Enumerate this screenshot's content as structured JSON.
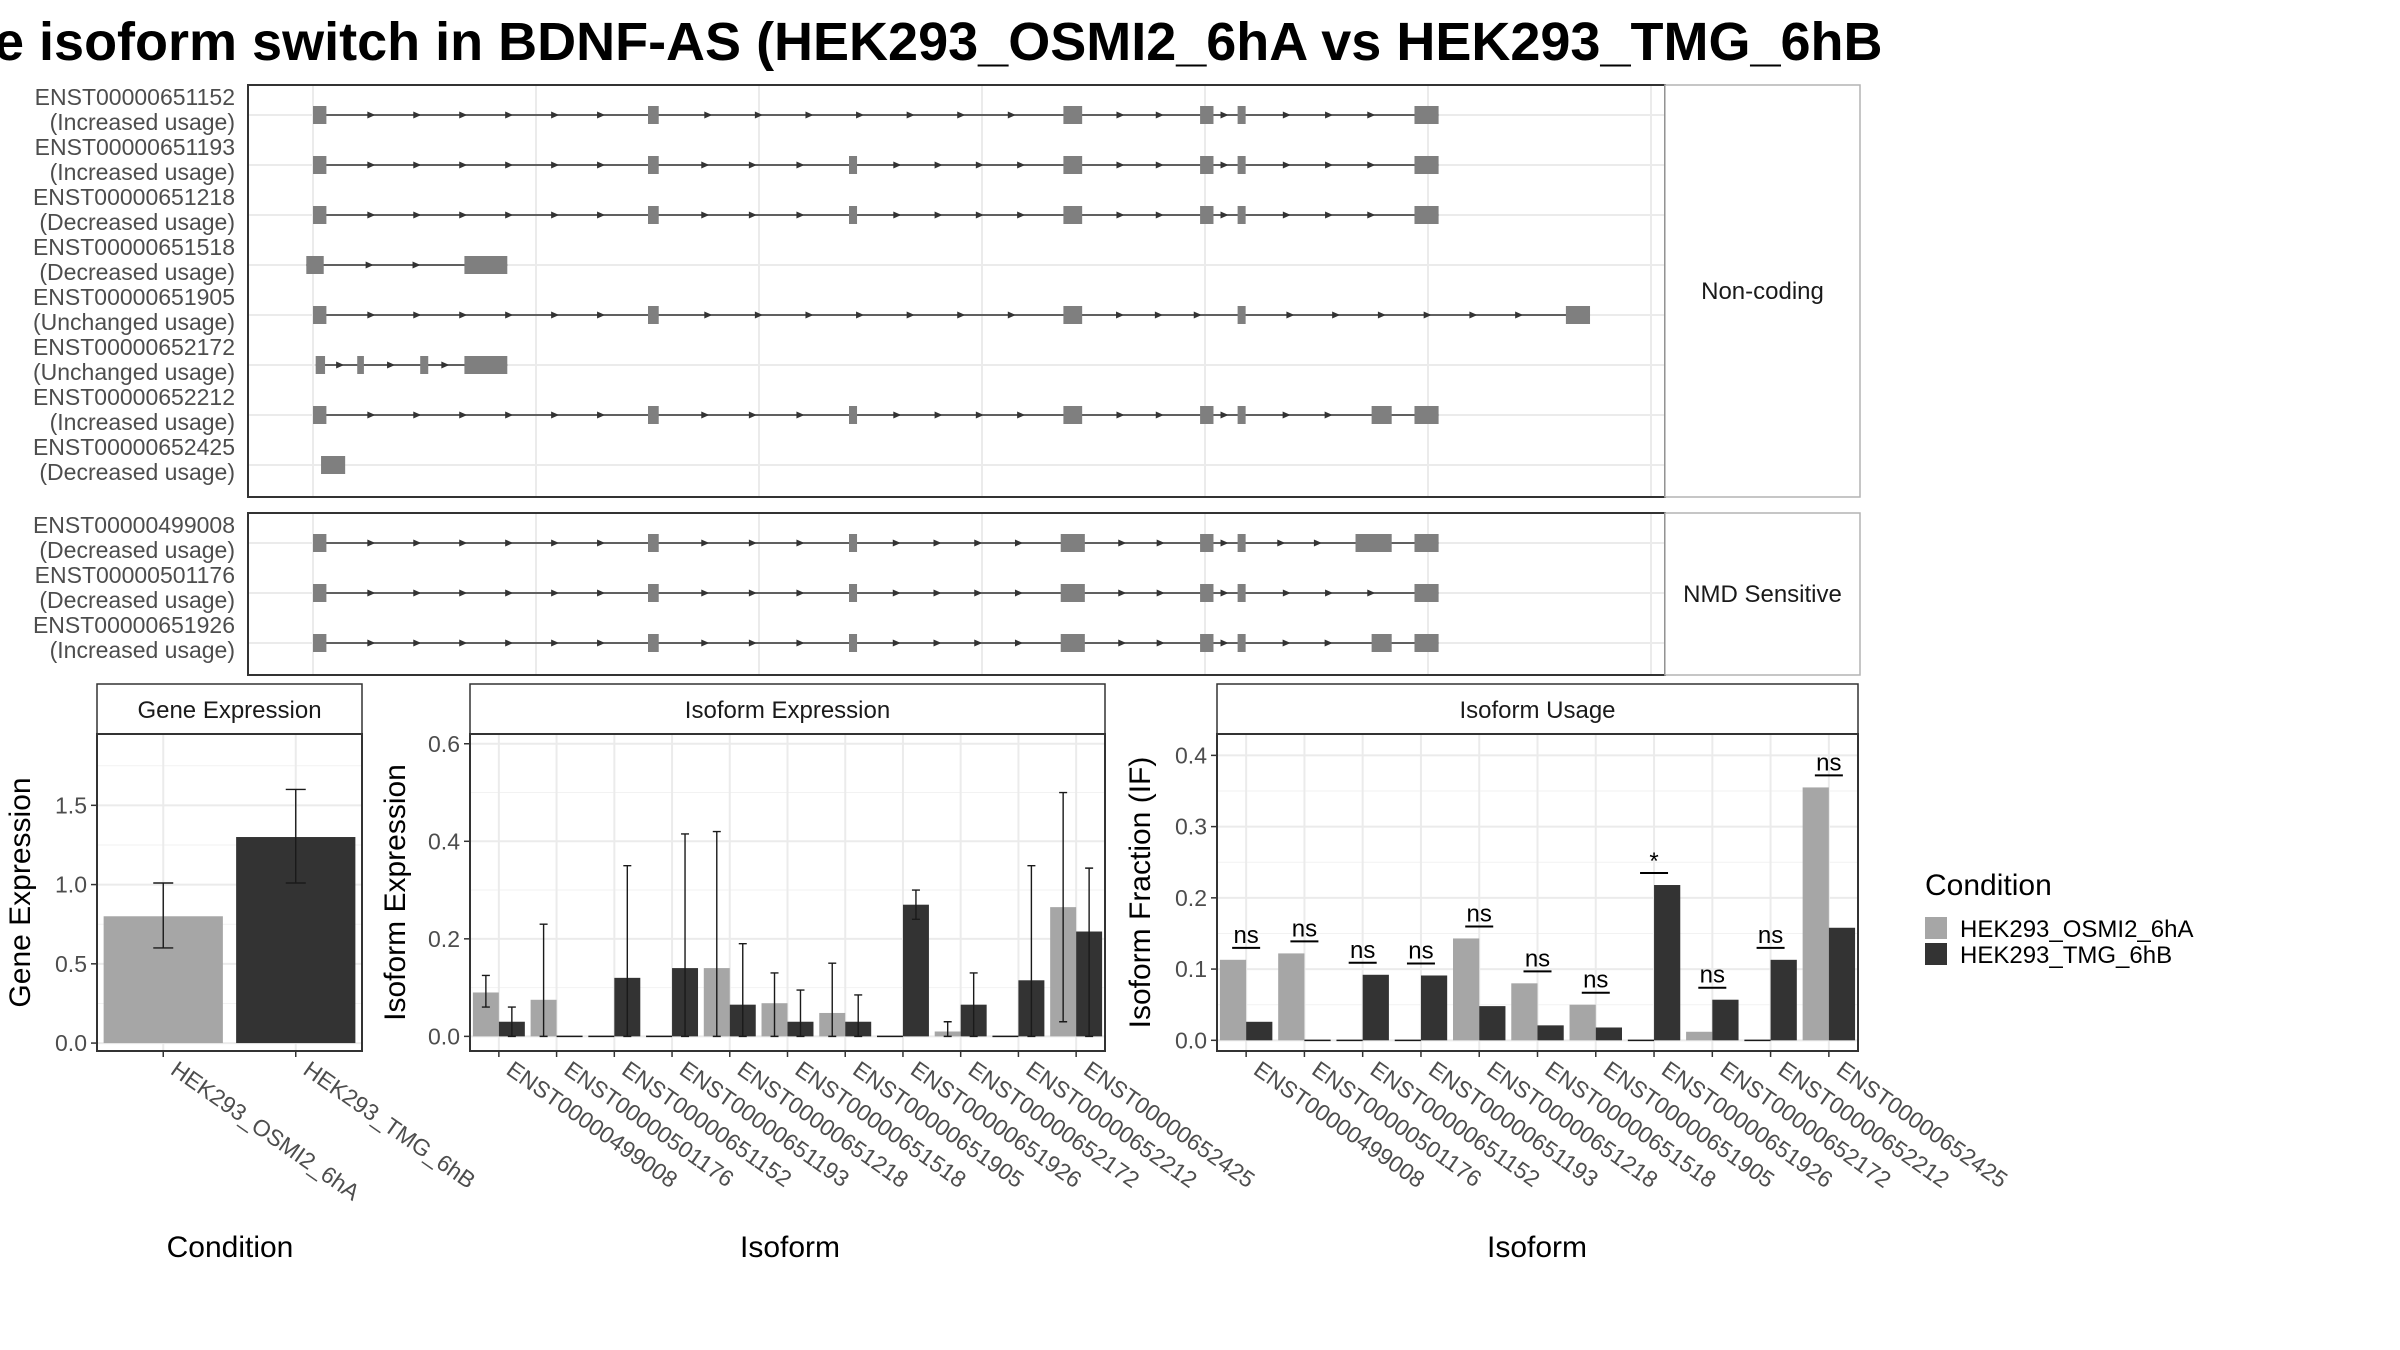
{
  "title": "e isoform switch in BDNF-AS (HEK293_OSMI2_6hA vs HEK293_TMG_6hB",
  "colors": {
    "cond1": "#a6a6a6",
    "cond2": "#333333",
    "exon": "#7f7f7f"
  },
  "transcript_facets": [
    {
      "label": "Non-coding",
      "transcripts": [
        {
          "id": "ENST00000651152",
          "change": "(Increased usage)",
          "exons": [
            [
              0,
              10
            ],
            [
              250,
              258
            ],
            [
              560,
              574
            ],
            [
              662,
              672
            ],
            [
              690,
              696
            ],
            [
              822,
              840
            ]
          ]
        },
        {
          "id": "ENST00000651193",
          "change": "(Increased usage)",
          "exons": [
            [
              0,
              10
            ],
            [
              250,
              258
            ],
            [
              400,
              406
            ],
            [
              560,
              574
            ],
            [
              662,
              672
            ],
            [
              690,
              696
            ],
            [
              822,
              840
            ]
          ]
        },
        {
          "id": "ENST00000651218",
          "change": "(Decreased usage)",
          "exons": [
            [
              0,
              10
            ],
            [
              250,
              258
            ],
            [
              400,
              406
            ],
            [
              560,
              574
            ],
            [
              662,
              672
            ],
            [
              690,
              696
            ],
            [
              822,
              840
            ]
          ]
        },
        {
          "id": "ENST00000651518",
          "change": "(Decreased usage)",
          "exons": [
            [
              -5,
              8
            ],
            [
              113,
              145
            ]
          ]
        },
        {
          "id": "ENST00000651905",
          "change": "(Unchanged usage)",
          "exons": [
            [
              0,
              10
            ],
            [
              250,
              258
            ],
            [
              560,
              574
            ],
            [
              690,
              696
            ],
            [
              935,
              953
            ]
          ]
        },
        {
          "id": "ENST00000652172",
          "change": "(Unchanged usage)",
          "exons": [
            [
              2,
              9
            ],
            [
              33,
              38
            ],
            [
              80,
              86
            ],
            [
              113,
              145
            ]
          ]
        },
        {
          "id": "ENST00000652212",
          "change": "(Increased usage)",
          "exons": [
            [
              0,
              10
            ],
            [
              250,
              258
            ],
            [
              400,
              406
            ],
            [
              560,
              574
            ],
            [
              662,
              672
            ],
            [
              690,
              696
            ],
            [
              790,
              805
            ],
            [
              822,
              840
            ]
          ]
        },
        {
          "id": "ENST00000652425",
          "change": "(Decreased usage)",
          "exons": [
            [
              6,
              24
            ]
          ]
        }
      ]
    },
    {
      "label": "NMD Sensitive",
      "transcripts": [
        {
          "id": "ENST00000499008",
          "change": "(Decreased usage)",
          "exons": [
            [
              0,
              10
            ],
            [
              250,
              258
            ],
            [
              400,
              406
            ],
            [
              558,
              576
            ],
            [
              662,
              672
            ],
            [
              690,
              696
            ],
            [
              778,
              805
            ],
            [
              822,
              840
            ]
          ]
        },
        {
          "id": "ENST00000501176",
          "change": "(Decreased usage)",
          "exons": [
            [
              0,
              10
            ],
            [
              250,
              258
            ],
            [
              400,
              406
            ],
            [
              558,
              576
            ],
            [
              662,
              672
            ],
            [
              690,
              696
            ],
            [
              822,
              840
            ]
          ]
        },
        {
          "id": "ENST00000651926",
          "change": "(Increased usage)",
          "exons": [
            [
              0,
              10
            ],
            [
              250,
              258
            ],
            [
              400,
              406
            ],
            [
              558,
              576
            ],
            [
              662,
              672
            ],
            [
              690,
              696
            ],
            [
              790,
              805
            ],
            [
              822,
              840
            ]
          ]
        }
      ]
    }
  ],
  "chart_data": [
    {
      "type": "bar",
      "panel": "Gene Expression",
      "categories": [
        "HEK293_OSMI2_6hA",
        "HEK293_TMG_6hB"
      ],
      "values": [
        0.8,
        1.3
      ],
      "error_low": [
        0.6,
        1.01
      ],
      "error_high": [
        1.01,
        1.6
      ],
      "xlabel": "Condition",
      "ylabel": "Gene Expression",
      "ylim": [
        -0.05,
        1.95
      ],
      "yticks": [
        "0.0",
        "0.5",
        "1.0",
        "1.5"
      ]
    },
    {
      "type": "bar",
      "panel": "Isoform Expression",
      "categories": [
        "ENST00000499008",
        "ENST00000501176",
        "ENST00000651152",
        "ENST00000651193",
        "ENST00000651218",
        "ENST00000651518",
        "ENST00000651905",
        "ENST00000651926",
        "ENST00000652172",
        "ENST00000652212",
        "ENST00000652425"
      ],
      "series": [
        {
          "name": "HEK293_OSMI2_6hA",
          "values": [
            0.09,
            0.075,
            0.0,
            0.0,
            0.14,
            0.068,
            0.048,
            0.0,
            0.01,
            0.0,
            0.265
          ],
          "error_low": [
            0.06,
            null,
            null,
            null,
            null,
            null,
            null,
            null,
            0.0,
            null,
            0.03
          ],
          "error_high": [
            0.125,
            0.23,
            null,
            null,
            0.42,
            0.13,
            0.15,
            null,
            0.03,
            null,
            0.5
          ]
        },
        {
          "name": "HEK293_TMG_6hB",
          "values": [
            0.03,
            0.0,
            0.12,
            0.14,
            0.065,
            0.03,
            0.03,
            0.27,
            0.065,
            0.115,
            0.215
          ],
          "error_low": [
            null,
            null,
            null,
            null,
            null,
            null,
            null,
            0.24,
            null,
            null,
            0.0
          ],
          "error_high": [
            0.06,
            null,
            0.35,
            0.415,
            0.19,
            0.095,
            0.085,
            0.3,
            0.13,
            0.35,
            0.345
          ]
        }
      ],
      "xlabel": "Isoform",
      "ylabel": "Isoform Expression",
      "ylim": [
        -0.03,
        0.62
      ],
      "yticks": [
        "0.0",
        "0.2",
        "0.4",
        "0.6"
      ]
    },
    {
      "type": "bar",
      "panel": "Isoform Usage",
      "categories": [
        "ENST00000499008",
        "ENST00000501176",
        "ENST00000651152",
        "ENST00000651193",
        "ENST00000651218",
        "ENST00000651518",
        "ENST00000651905",
        "ENST00000651926",
        "ENST00000652172",
        "ENST00000652212",
        "ENST00000652425"
      ],
      "series": [
        {
          "name": "HEK293_OSMI2_6hA",
          "values": [
            0.113,
            0.122,
            0.0,
            0.0,
            0.143,
            0.08,
            0.05,
            0.0,
            0.012,
            0.0,
            0.355
          ]
        },
        {
          "name": "HEK293_TMG_6hB",
          "values": [
            0.026,
            0.0,
            0.092,
            0.091,
            0.048,
            0.021,
            0.018,
            0.218,
            0.057,
            0.113,
            0.158
          ]
        }
      ],
      "significance": [
        "ns",
        "ns",
        "ns",
        "ns",
        "ns",
        "ns",
        "ns",
        "*",
        "ns",
        "ns",
        "ns"
      ],
      "xlabel": "Isoform",
      "ylabel": "Isoform Fraction (IF)",
      "ylim": [
        -0.015,
        0.43
      ],
      "yticks": [
        "0.0",
        "0.1",
        "0.2",
        "0.3",
        "0.4"
      ]
    }
  ],
  "legend": {
    "title": "Condition",
    "items": [
      "HEK293_OSMI2_6hA",
      "HEK293_TMG_6hB"
    ]
  }
}
